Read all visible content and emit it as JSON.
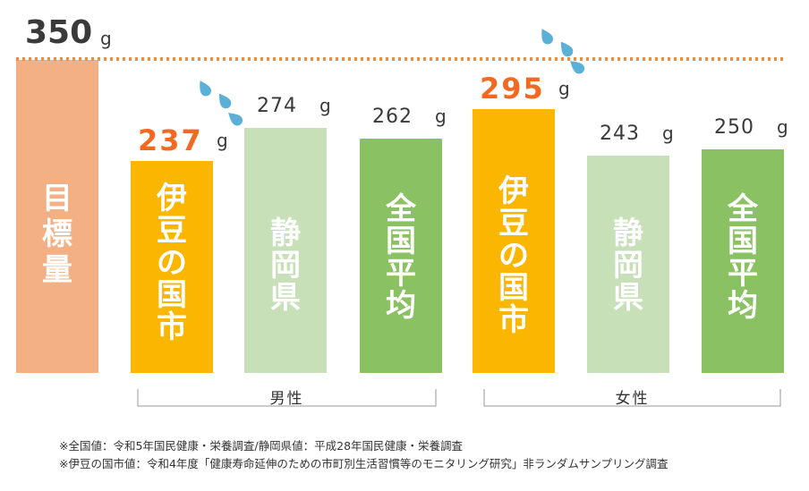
{
  "colors": {
    "target": "#f2b084",
    "izu": "#fbb601",
    "shizuoka": "#c7e0b7",
    "national": "#8ac163",
    "highlight": "#f26a21",
    "dotted_line": "#ef8d3c",
    "drop": "#5bb0d8"
  },
  "target": {
    "value": 350,
    "value_label": "350",
    "unit": "g",
    "bar_label": "目標量"
  },
  "chart_data": {
    "type": "bar",
    "unit": "g",
    "ylim": [
      0,
      350
    ],
    "target_line": 350,
    "groups": [
      {
        "name": "男性",
        "bars": [
          {
            "category": "伊豆の国市",
            "value": 237,
            "value_label": "237",
            "highlight": true
          },
          {
            "category": "静岡県",
            "value": 274,
            "value_label": "274",
            "highlight": false
          },
          {
            "category": "全国平均",
            "value": 262,
            "value_label": "262",
            "highlight": false
          }
        ]
      },
      {
        "name": "女性",
        "bars": [
          {
            "category": "伊豆の国市",
            "value": 295,
            "value_label": "295",
            "highlight": true
          },
          {
            "category": "静岡県",
            "value": 243,
            "value_label": "243",
            "highlight": false
          },
          {
            "category": "全国平均",
            "value": 250,
            "value_label": "250",
            "highlight": false
          }
        ]
      }
    ]
  },
  "notes": [
    "※全国値：令和5年国民健康・栄養調査/静岡県値：平成28年国民健康・栄養調査",
    "※伊豆の国市値：令和4年度「健康寿命延伸のための市町別生活習慣等のモニタリング研究」非ランダムサンプリング調査"
  ]
}
